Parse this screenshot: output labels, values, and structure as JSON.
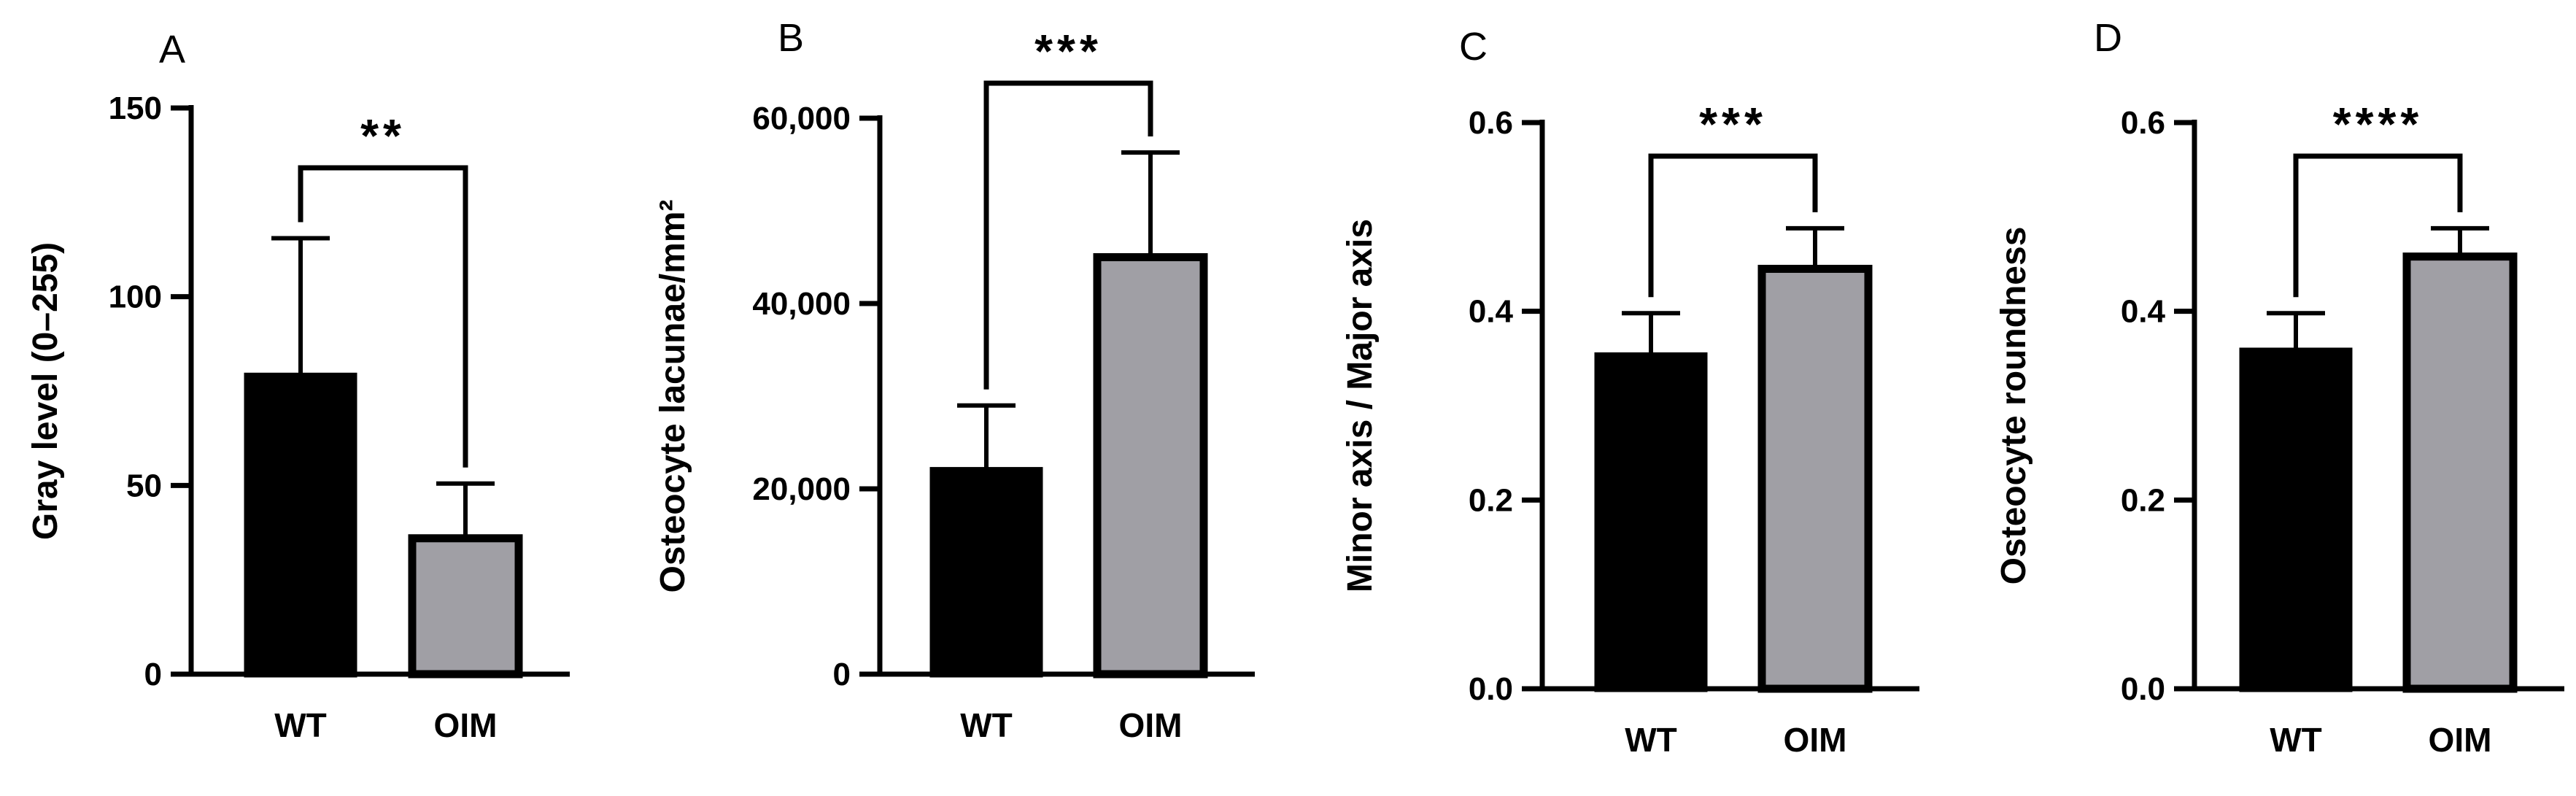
{
  "chart_data": [
    {
      "type": "bar",
      "panel": "A",
      "title": "",
      "xlabel": "",
      "ylabel": "Gray level (0–255)",
      "categories": [
        "WT",
        "OIM"
      ],
      "values": [
        79,
        36
      ],
      "errors": [
        36.5,
        14.5
      ],
      "ylim": [
        0,
        150
      ],
      "yticks": [
        0,
        50,
        100,
        150
      ],
      "ytick_labels": [
        "0",
        "50",
        "100",
        "150"
      ],
      "significance": "**",
      "colors": [
        "#000000",
        "#a09fa5"
      ]
    },
    {
      "type": "bar",
      "panel": "B",
      "title": "",
      "xlabel": "",
      "ylabel": "Osteocyte lacunae/mm²",
      "categories": [
        "WT",
        "OIM"
      ],
      "values": [
        22000,
        45000
      ],
      "errors": [
        7000,
        11300
      ],
      "ylim": [
        0,
        60000
      ],
      "yticks": [
        0,
        20000,
        40000,
        60000
      ],
      "ytick_labels": [
        "0",
        "20,000",
        "40,000",
        "60,000"
      ],
      "significance": "***",
      "colors": [
        "#000000",
        "#a09fa5"
      ]
    },
    {
      "type": "bar",
      "panel": "C",
      "title": "",
      "xlabel": "",
      "ylabel": "Minor axis / Major axis",
      "categories": [
        "WT",
        "OIM"
      ],
      "values": [
        0.353,
        0.445
      ],
      "errors": [
        0.045,
        0.043
      ],
      "ylim": [
        0,
        0.6
      ],
      "yticks": [
        0,
        0.2,
        0.4,
        0.6
      ],
      "ytick_labels": [
        "0.0",
        "0.2",
        "0.4",
        "0.6"
      ],
      "significance": "***",
      "colors": [
        "#000000",
        "#a09fa5"
      ]
    },
    {
      "type": "bar",
      "panel": "D",
      "title": "",
      "xlabel": "",
      "ylabel": "Osteocyte roundness",
      "categories": [
        "WT",
        "OIM"
      ],
      "values": [
        0.358,
        0.458
      ],
      "errors": [
        0.04,
        0.03
      ],
      "ylim": [
        0,
        0.6
      ],
      "yticks": [
        0,
        0.2,
        0.4,
        0.6
      ],
      "ytick_labels": [
        "0.0",
        "0.2",
        "0.4",
        "0.6"
      ],
      "significance": "****",
      "colors": [
        "#000000",
        "#a09fa5"
      ]
    }
  ]
}
